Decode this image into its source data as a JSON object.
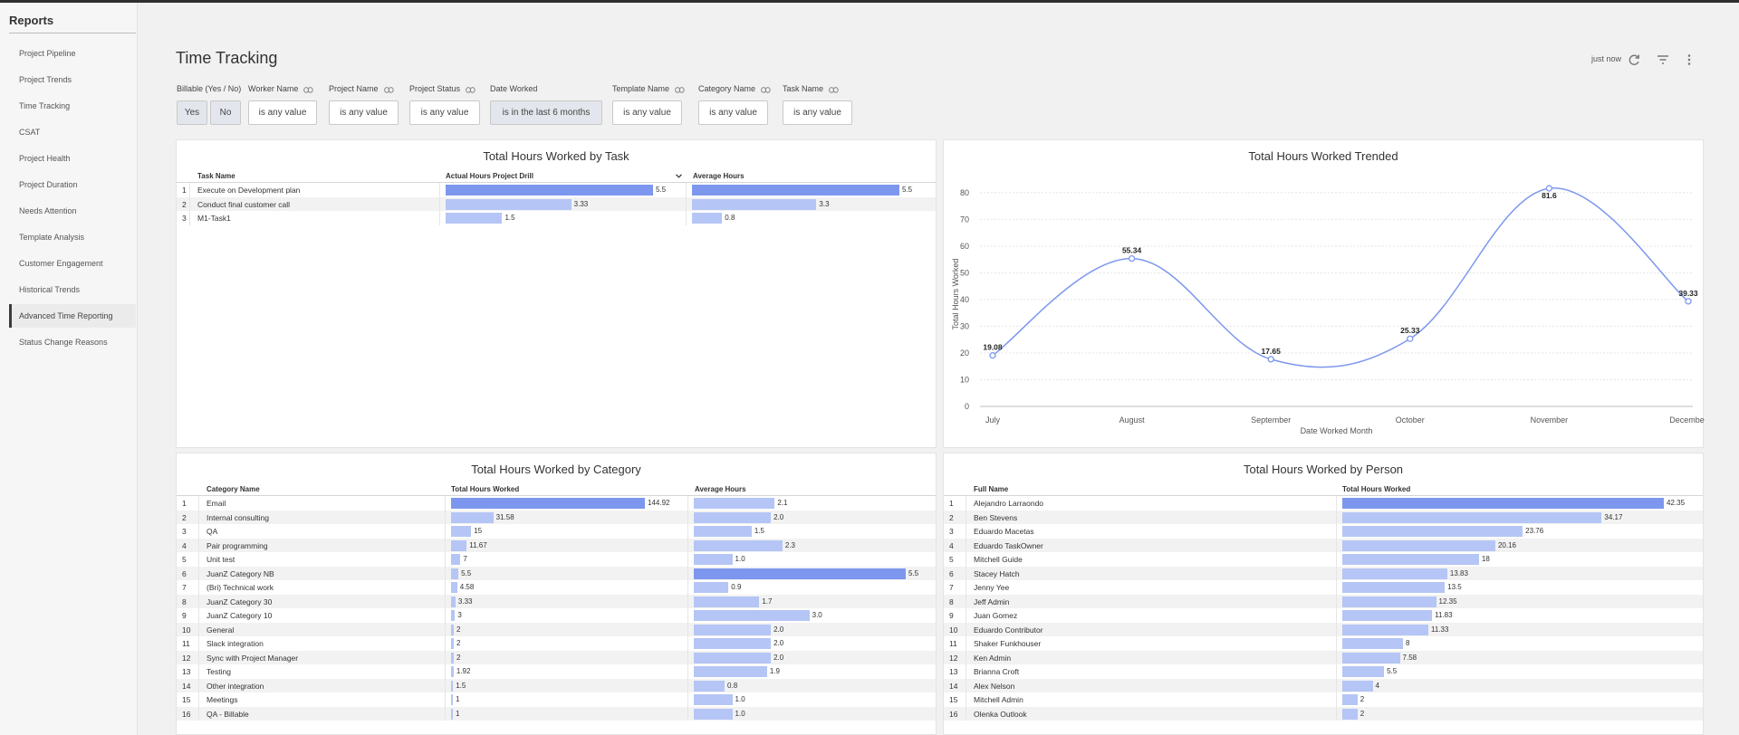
{
  "sidebar": {
    "title": "Reports",
    "items": [
      {
        "label": "Project Pipeline"
      },
      {
        "label": "Project Trends"
      },
      {
        "label": "Time Tracking"
      },
      {
        "label": "CSAT"
      },
      {
        "label": "Project Health"
      },
      {
        "label": "Project Duration"
      },
      {
        "label": "Needs Attention"
      },
      {
        "label": "Template Analysis"
      },
      {
        "label": "Customer Engagement"
      },
      {
        "label": "Historical Trends"
      },
      {
        "label": "Advanced Time Reporting",
        "active": true
      },
      {
        "label": "Status Change Reasons"
      }
    ]
  },
  "header": {
    "title": "Time Tracking",
    "refresh_text": "just now",
    "icons": [
      "refresh-icon",
      "filter-icon",
      "more-vertical-icon"
    ]
  },
  "filters": {
    "billable": {
      "label": "Billable (Yes / No)",
      "yes": "Yes",
      "no": "No"
    },
    "worker": {
      "label": "Worker Name",
      "value": "is any value"
    },
    "project": {
      "label": "Project Name",
      "value": "is any value"
    },
    "status": {
      "label": "Project Status",
      "value": "is any value"
    },
    "date": {
      "label": "Date Worked",
      "value": "is in the last 6 months"
    },
    "template": {
      "label": "Template Name",
      "value": "is any value"
    },
    "category": {
      "label": "Category Name",
      "value": "is any value"
    },
    "task": {
      "label": "Task Name",
      "value": "is any value"
    }
  },
  "colors": {
    "bar_primary": "#7d97ee",
    "bar_secondary": "#b5c5f5",
    "line": "#7d97ee"
  },
  "task_table": {
    "title": "Total Hours Worked by Task",
    "headers": [
      "Task Name",
      "Actual Hours Project Drill",
      "Average Hours"
    ],
    "rows": [
      {
        "num": "1",
        "name": "Execute on Development plan",
        "actual": 5.5,
        "actual_label": "5.5",
        "avg": 5.5,
        "avg_label": "5.5"
      },
      {
        "num": "2",
        "name": "Conduct final customer call",
        "actual": 3.33,
        "actual_label": "3.33",
        "avg": 3.3,
        "avg_label": "3.3"
      },
      {
        "num": "3",
        "name": "M1-Task1",
        "actual": 1.5,
        "actual_label": "1.5",
        "avg": 0.8,
        "avg_label": "0.8"
      }
    ]
  },
  "chart_data": {
    "type": "line",
    "title": "Total Hours Worked Trended",
    "xlabel": "Date Worked Month",
    "ylabel": "Total Hours Worked",
    "categories": [
      "July",
      "August",
      "September",
      "October",
      "November",
      "December"
    ],
    "series": [
      {
        "values": [
          19.08,
          55.34,
          17.65,
          25.33,
          81.6,
          39.33
        ]
      }
    ],
    "data_labels": [
      "19.08",
      "55.34",
      "17.65",
      "25.33",
      "81.6",
      "39.33"
    ],
    "yticks": [
      "0",
      "10",
      "20",
      "30",
      "40",
      "50",
      "60",
      "70",
      "80"
    ],
    "ylim": [
      0,
      84
    ],
    "grid": true
  },
  "category_table": {
    "title": "Total Hours Worked by Category",
    "headers": [
      "Category Name",
      "Total Hours Worked",
      "Average Hours"
    ],
    "rows": [
      {
        "num": "1",
        "name": "Email",
        "total": 144.92,
        "total_label": "144.92",
        "avg": 2.1,
        "avg_label": "2.1"
      },
      {
        "num": "2",
        "name": "Internal consulting",
        "total": 31.58,
        "total_label": "31.58",
        "avg": 2.0,
        "avg_label": "2.0"
      },
      {
        "num": "3",
        "name": "QA",
        "total": 15,
        "total_label": "15",
        "avg": 1.5,
        "avg_label": "1.5"
      },
      {
        "num": "4",
        "name": "Pair programming",
        "total": 11.67,
        "total_label": "11.67",
        "avg": 2.3,
        "avg_label": "2.3"
      },
      {
        "num": "5",
        "name": "Unit test",
        "total": 7,
        "total_label": "7",
        "avg": 1.0,
        "avg_label": "1.0"
      },
      {
        "num": "6",
        "name": "JuanZ Category NB",
        "total": 5.5,
        "total_label": "5.5",
        "avg": 5.5,
        "avg_label": "5.5"
      },
      {
        "num": "7",
        "name": "(Bri) Technical work",
        "total": 4.58,
        "total_label": "4.58",
        "avg": 0.9,
        "avg_label": "0.9"
      },
      {
        "num": "8",
        "name": "JuanZ Category 30",
        "total": 3.33,
        "total_label": "3.33",
        "avg": 1.7,
        "avg_label": "1.7"
      },
      {
        "num": "9",
        "name": "JuanZ Category 10",
        "total": 3,
        "total_label": "3",
        "avg": 3.0,
        "avg_label": "3.0"
      },
      {
        "num": "10",
        "name": "General",
        "total": 2,
        "total_label": "2",
        "avg": 2.0,
        "avg_label": "2.0"
      },
      {
        "num": "11",
        "name": "Slack integration",
        "total": 2,
        "total_label": "2",
        "avg": 2.0,
        "avg_label": "2.0"
      },
      {
        "num": "12",
        "name": "Sync with Project Manager",
        "total": 2,
        "total_label": "2",
        "avg": 2.0,
        "avg_label": "2.0"
      },
      {
        "num": "13",
        "name": "Testing",
        "total": 1.92,
        "total_label": "1.92",
        "avg": 1.9,
        "avg_label": "1.9"
      },
      {
        "num": "14",
        "name": "Other integration",
        "total": 1.5,
        "total_label": "1.5",
        "avg": 0.8,
        "avg_label": "0.8"
      },
      {
        "num": "15",
        "name": "Meetings",
        "total": 1,
        "total_label": "1",
        "avg": 1.0,
        "avg_label": "1.0"
      },
      {
        "num": "16",
        "name": "QA - Billable",
        "total": 1,
        "total_label": "1",
        "avg": 1.0,
        "avg_label": "1.0"
      }
    ]
  },
  "person_table": {
    "title": "Total Hours Worked by Person",
    "headers": [
      "Full Name",
      "Total Hours Worked"
    ],
    "rows": [
      {
        "num": "1",
        "name": "Alejandro Larraondo",
        "total": 42.35,
        "total_label": "42.35"
      },
      {
        "num": "2",
        "name": "Ben Stevens",
        "total": 34.17,
        "total_label": "34.17"
      },
      {
        "num": "3",
        "name": "Eduardo Macetas",
        "total": 23.76,
        "total_label": "23.76"
      },
      {
        "num": "4",
        "name": "Eduardo TaskOwner",
        "total": 20.16,
        "total_label": "20.16"
      },
      {
        "num": "5",
        "name": "Mitchell Guide",
        "total": 18,
        "total_label": "18"
      },
      {
        "num": "6",
        "name": "Stacey Hatch",
        "total": 13.83,
        "total_label": "13.83"
      },
      {
        "num": "7",
        "name": "Jenny Yee",
        "total": 13.5,
        "total_label": "13.5"
      },
      {
        "num": "8",
        "name": "Jeff Admin",
        "total": 12.35,
        "total_label": "12.35"
      },
      {
        "num": "9",
        "name": "Juan Gomez",
        "total": 11.83,
        "total_label": "11.83"
      },
      {
        "num": "10",
        "name": "Eduardo Contributor",
        "total": 11.33,
        "total_label": "11.33"
      },
      {
        "num": "11",
        "name": "Shaker Funkhouser",
        "total": 8,
        "total_label": "8"
      },
      {
        "num": "12",
        "name": "Ken Admin",
        "total": 7.58,
        "total_label": "7.58"
      },
      {
        "num": "13",
        "name": "Brianna Croft",
        "total": 5.5,
        "total_label": "5.5"
      },
      {
        "num": "14",
        "name": "Alex Nelson",
        "total": 4,
        "total_label": "4"
      },
      {
        "num": "15",
        "name": "Mitchell Admin",
        "total": 2,
        "total_label": "2"
      },
      {
        "num": "16",
        "name": "Olenka Outlook",
        "total": 2,
        "total_label": "2"
      }
    ]
  }
}
